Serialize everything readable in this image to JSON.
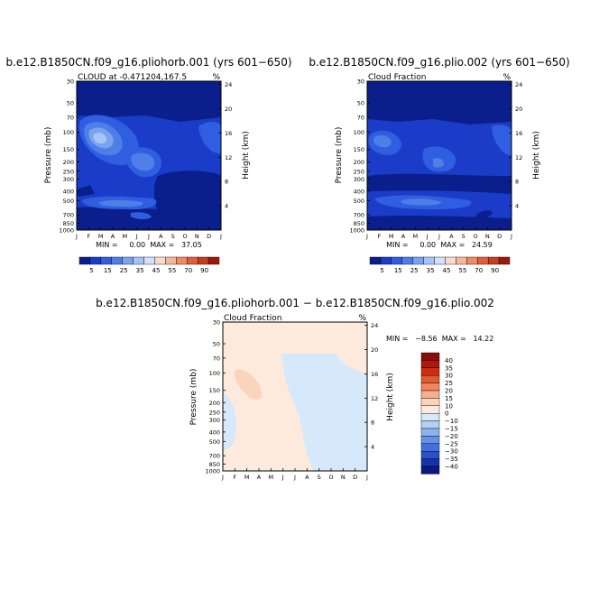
{
  "chart_data": [
    {
      "type": "heatmap",
      "title": "b.e12.B1850CN.f09_g16.pliohorb.001  (yrs 601−650)",
      "subtitle": "CLOUD at -0.471204,167.5",
      "units": "%",
      "xlabel": "",
      "ylabel": "Pressure (mb)",
      "y2label": "Height (km)",
      "months": [
        "J",
        "F",
        "M",
        "A",
        "M",
        "J",
        "J",
        "A",
        "S",
        "O",
        "N",
        "D",
        "J"
      ],
      "pressure_ticks": [
        "30",
        "50",
        "70",
        "100",
        "150",
        "200",
        "250",
        "300",
        "400",
        "500",
        "700",
        "850",
        "1000"
      ],
      "height_ticks": [
        "24",
        "20",
        "16",
        "12",
        "8",
        "4"
      ],
      "ylim": [
        1000,
        30
      ],
      "stats": "MIN =     0.00  MAX =   37.05",
      "colorbar_labels": [
        "5",
        "15",
        "25",
        "35",
        "45",
        "55",
        "70",
        "90"
      ],
      "features": [
        {
          "month": 2.2,
          "pressure": 110,
          "value": 37
        },
        {
          "month": 5.6,
          "pressure": 170,
          "value": 26
        },
        {
          "month": 2.5,
          "pressure": 520,
          "value": 15
        },
        {
          "month": 5.5,
          "pressure": 560,
          "value": 18
        },
        {
          "month": 11.5,
          "pressure": 100,
          "value": 14
        }
      ]
    },
    {
      "type": "heatmap",
      "title": "b.e12.B1850CN.f09_g16.plio.002  (yrs 601−650)",
      "subtitle": "Cloud Fraction",
      "units": "%",
      "xlabel": "",
      "ylabel": "Pressure (mb)",
      "y2label": "Height (km)",
      "months": [
        "J",
        "F",
        "M",
        "A",
        "M",
        "J",
        "J",
        "A",
        "S",
        "O",
        "N",
        "D",
        "J"
      ],
      "pressure_ticks": [
        "30",
        "50",
        "70",
        "100",
        "150",
        "200",
        "250",
        "300",
        "400",
        "500",
        "700",
        "850",
        "1000"
      ],
      "height_ticks": [
        "24",
        "20",
        "16",
        "12",
        "8",
        "4"
      ],
      "ylim": [
        1000,
        30
      ],
      "stats": "MIN =     0.00  MAX =   24.59",
      "colorbar_labels": [
        "5",
        "15",
        "25",
        "35",
        "45",
        "55",
        "70",
        "90"
      ],
      "features": [
        {
          "month": 1.5,
          "pressure": 100,
          "value": 22
        },
        {
          "month": 5.8,
          "pressure": 180,
          "value": 20
        },
        {
          "month": 4.5,
          "pressure": 520,
          "value": 16
        },
        {
          "month": 11.5,
          "pressure": 100,
          "value": 16
        }
      ]
    },
    {
      "type": "heatmap",
      "title": "b.e12.B1850CN.f09_g16.pliohorb.001  −  b.e12.B1850CN.f09_g16.plio.002",
      "subtitle": "Cloud Fraction",
      "units": "%",
      "xlabel": "",
      "ylabel": "Pressure (mb)",
      "y2label": "Height (km)",
      "months": [
        "J",
        "F",
        "M",
        "A",
        "M",
        "J",
        "J",
        "A",
        "S",
        "O",
        "N",
        "D",
        "J"
      ],
      "pressure_ticks": [
        "30",
        "50",
        "70",
        "100",
        "150",
        "200",
        "250",
        "300",
        "400",
        "500",
        "700",
        "850",
        "1000"
      ],
      "height_ticks": [
        "24",
        "20",
        "16",
        "12",
        "8",
        "4"
      ],
      "ylim": [
        1000,
        30
      ],
      "stats": "MIN =   −8.56  MAX =   14.22",
      "colorbar_labels": [
        "40",
        "35",
        "30",
        "25",
        "20",
        "15",
        "10",
        "0",
        "−10",
        "−15",
        "−20",
        "−25",
        "−30",
        "−35",
        "−40"
      ],
      "features": [
        {
          "region": "Jan–Aug upper and mid troposphere",
          "value": 5
        },
        {
          "region": "Feb–Mar around 100 mb",
          "value": 12
        },
        {
          "region": "Sep–Dec",
          "value": -5
        }
      ]
    }
  ],
  "colors": {
    "seq": [
      "#0a1f8c",
      "#1a3cc8",
      "#2f5ee0",
      "#4f7ee8",
      "#7aa2ef",
      "#a6c4f5",
      "#d2e2fb",
      "#f7dccb",
      "#f4b79a",
      "#ee8a63",
      "#e0603c",
      "#c63d22",
      "#9c1a0c"
    ],
    "div_pos": [
      "#8a0c0a",
      "#b0170c",
      "#cc2c12",
      "#e35a2e",
      "#ee8660",
      "#f6b08f",
      "#fad4bd",
      "#fdeadc"
    ],
    "div_neg": [
      "#d6e9fb",
      "#b2d0f4",
      "#8cb3ee",
      "#6791e6",
      "#4470dc",
      "#2a50cc",
      "#1632aa",
      "#0a1a80"
    ]
  }
}
